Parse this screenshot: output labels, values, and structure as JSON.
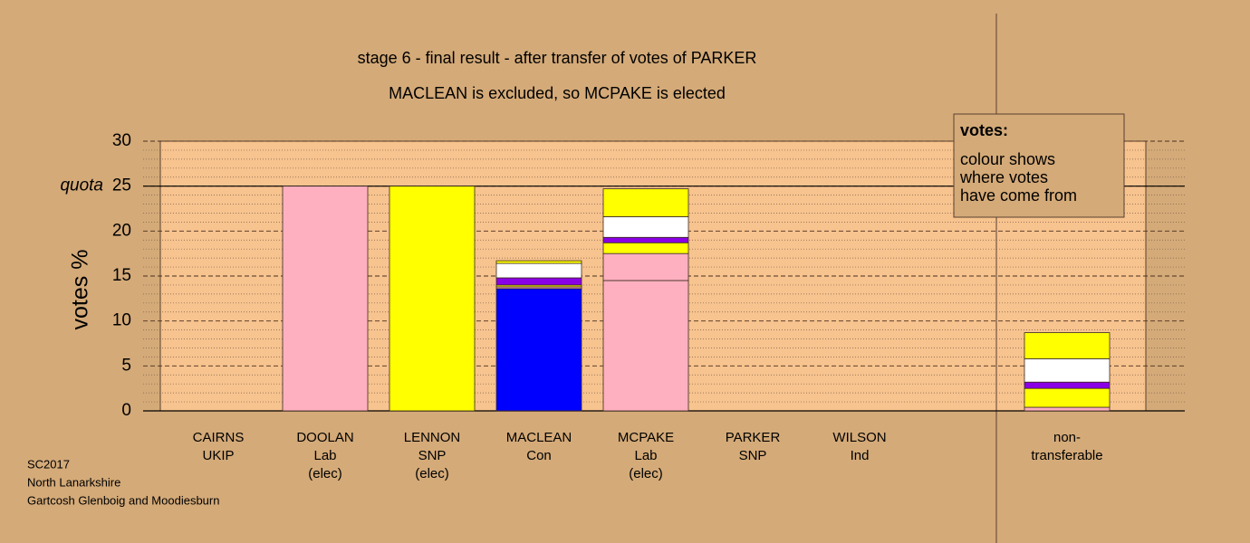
{
  "chart_data": {
    "type": "bar",
    "stacked": true,
    "title": "stage 6 - final result - after transfer of votes of PARKER",
    "subtitle": "MACLEAN is excluded, so MCPAKE is elected",
    "y_label": "votes %",
    "categories": [
      [
        "CAIRNS",
        "UKIP"
      ],
      [
        "DOOLAN",
        "Lab",
        "(elec)"
      ],
      [
        "LENNON",
        "SNP",
        "(elec)"
      ],
      [
        "MACLEAN",
        "Con"
      ],
      [
        "MCPAKE",
        "Lab",
        "(elec)"
      ],
      [
        "PARKER",
        "SNP"
      ],
      [
        "WILSON",
        "Ind"
      ],
      [
        "non-",
        "transferable"
      ]
    ],
    "series": [
      {
        "color": "#ffb0c0",
        "values": [
          null,
          25,
          null,
          null,
          14.5,
          null,
          null,
          null
        ]
      },
      {
        "color": "#ffff00",
        "values": [
          null,
          null,
          25,
          null,
          null,
          null,
          null,
          null
        ]
      },
      {
        "color": "#0000ff",
        "values": [
          null,
          null,
          null,
          13.6,
          null,
          null,
          null,
          null
        ]
      },
      {
        "color": "#ffb0c0",
        "values": [
          null,
          null,
          null,
          0.2,
          3.0,
          null,
          null,
          0.4
        ]
      },
      {
        "color": "#ffff00",
        "values": [
          null,
          null,
          null,
          0.2,
          1.2,
          null,
          null,
          2.1
        ]
      },
      {
        "color": "#8a00e6",
        "values": [
          null,
          null,
          null,
          0.8,
          0.6,
          null,
          null,
          0.7
        ]
      },
      {
        "color": "#ffffff",
        "values": [
          null,
          null,
          null,
          1.6,
          2.3,
          null,
          null,
          2.6
        ]
      },
      {
        "color": "#ffff00",
        "values": [
          null,
          null,
          null,
          0.3,
          3.1,
          null,
          null,
          2.9
        ]
      }
    ],
    "ylim": [
      0,
      30
    ],
    "yticks": [
      0,
      5,
      10,
      15,
      20,
      25,
      30
    ],
    "minor_yticks": [
      1,
      2,
      3,
      4,
      6,
      7,
      8,
      9,
      11,
      12,
      13,
      14,
      16,
      17,
      18,
      19,
      21,
      22,
      23,
      24,
      26,
      27,
      28,
      29
    ],
    "quota": 25,
    "quota_label": "quota",
    "grid": true,
    "legend_box": {
      "title": "votes:",
      "lines": [
        "colour shows",
        "where votes",
        "have come from"
      ]
    },
    "footer": [
      "SC2017",
      "North Lanarkshire",
      "Gartcosh Glenboig and Moodiesburn"
    ]
  }
}
